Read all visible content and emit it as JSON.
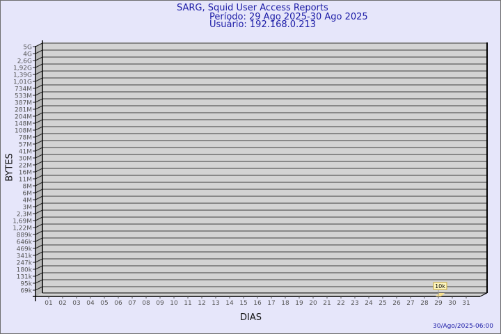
{
  "header": {
    "title": "SARG, Squid User Access Reports",
    "period": "Período: 29 Ago 2025-30 Ago 2025",
    "user": "Usuário: 192.168.0.213"
  },
  "footer": {
    "timestamp": "30/Ago/2025-06:00"
  },
  "colors": {
    "background": "#e6e6fa",
    "plot": "#d3d3d3",
    "title": "#1a1aa6",
    "bar": "#f8e08e"
  },
  "chart_data": {
    "type": "bar",
    "xlabel": "DIAS",
    "ylabel": "BYTES",
    "y_ticks": [
      "5G",
      "4G",
      "2,6G",
      "1,92G",
      "1,39G",
      "1,01G",
      "734M",
      "533M",
      "387M",
      "281M",
      "204M",
      "148M",
      "108M",
      "78M",
      "57M",
      "41M",
      "30M",
      "22M",
      "16M",
      "11M",
      "8M",
      "6M",
      "4M",
      "3M",
      "2,3M",
      "1,69M",
      "1,22M",
      "889k",
      "646k",
      "469k",
      "341k",
      "247k",
      "180k",
      "131k",
      "95k",
      "69k"
    ],
    "categories": [
      "01",
      "02",
      "03",
      "04",
      "05",
      "06",
      "07",
      "08",
      "09",
      "10",
      "11",
      "12",
      "13",
      "14",
      "15",
      "16",
      "17",
      "18",
      "19",
      "20",
      "21",
      "22",
      "23",
      "24",
      "25",
      "26",
      "27",
      "28",
      "29",
      "30",
      "31"
    ],
    "bars": [
      {
        "day": "29",
        "value": 10000,
        "label": "10k"
      }
    ],
    "grid": true
  }
}
